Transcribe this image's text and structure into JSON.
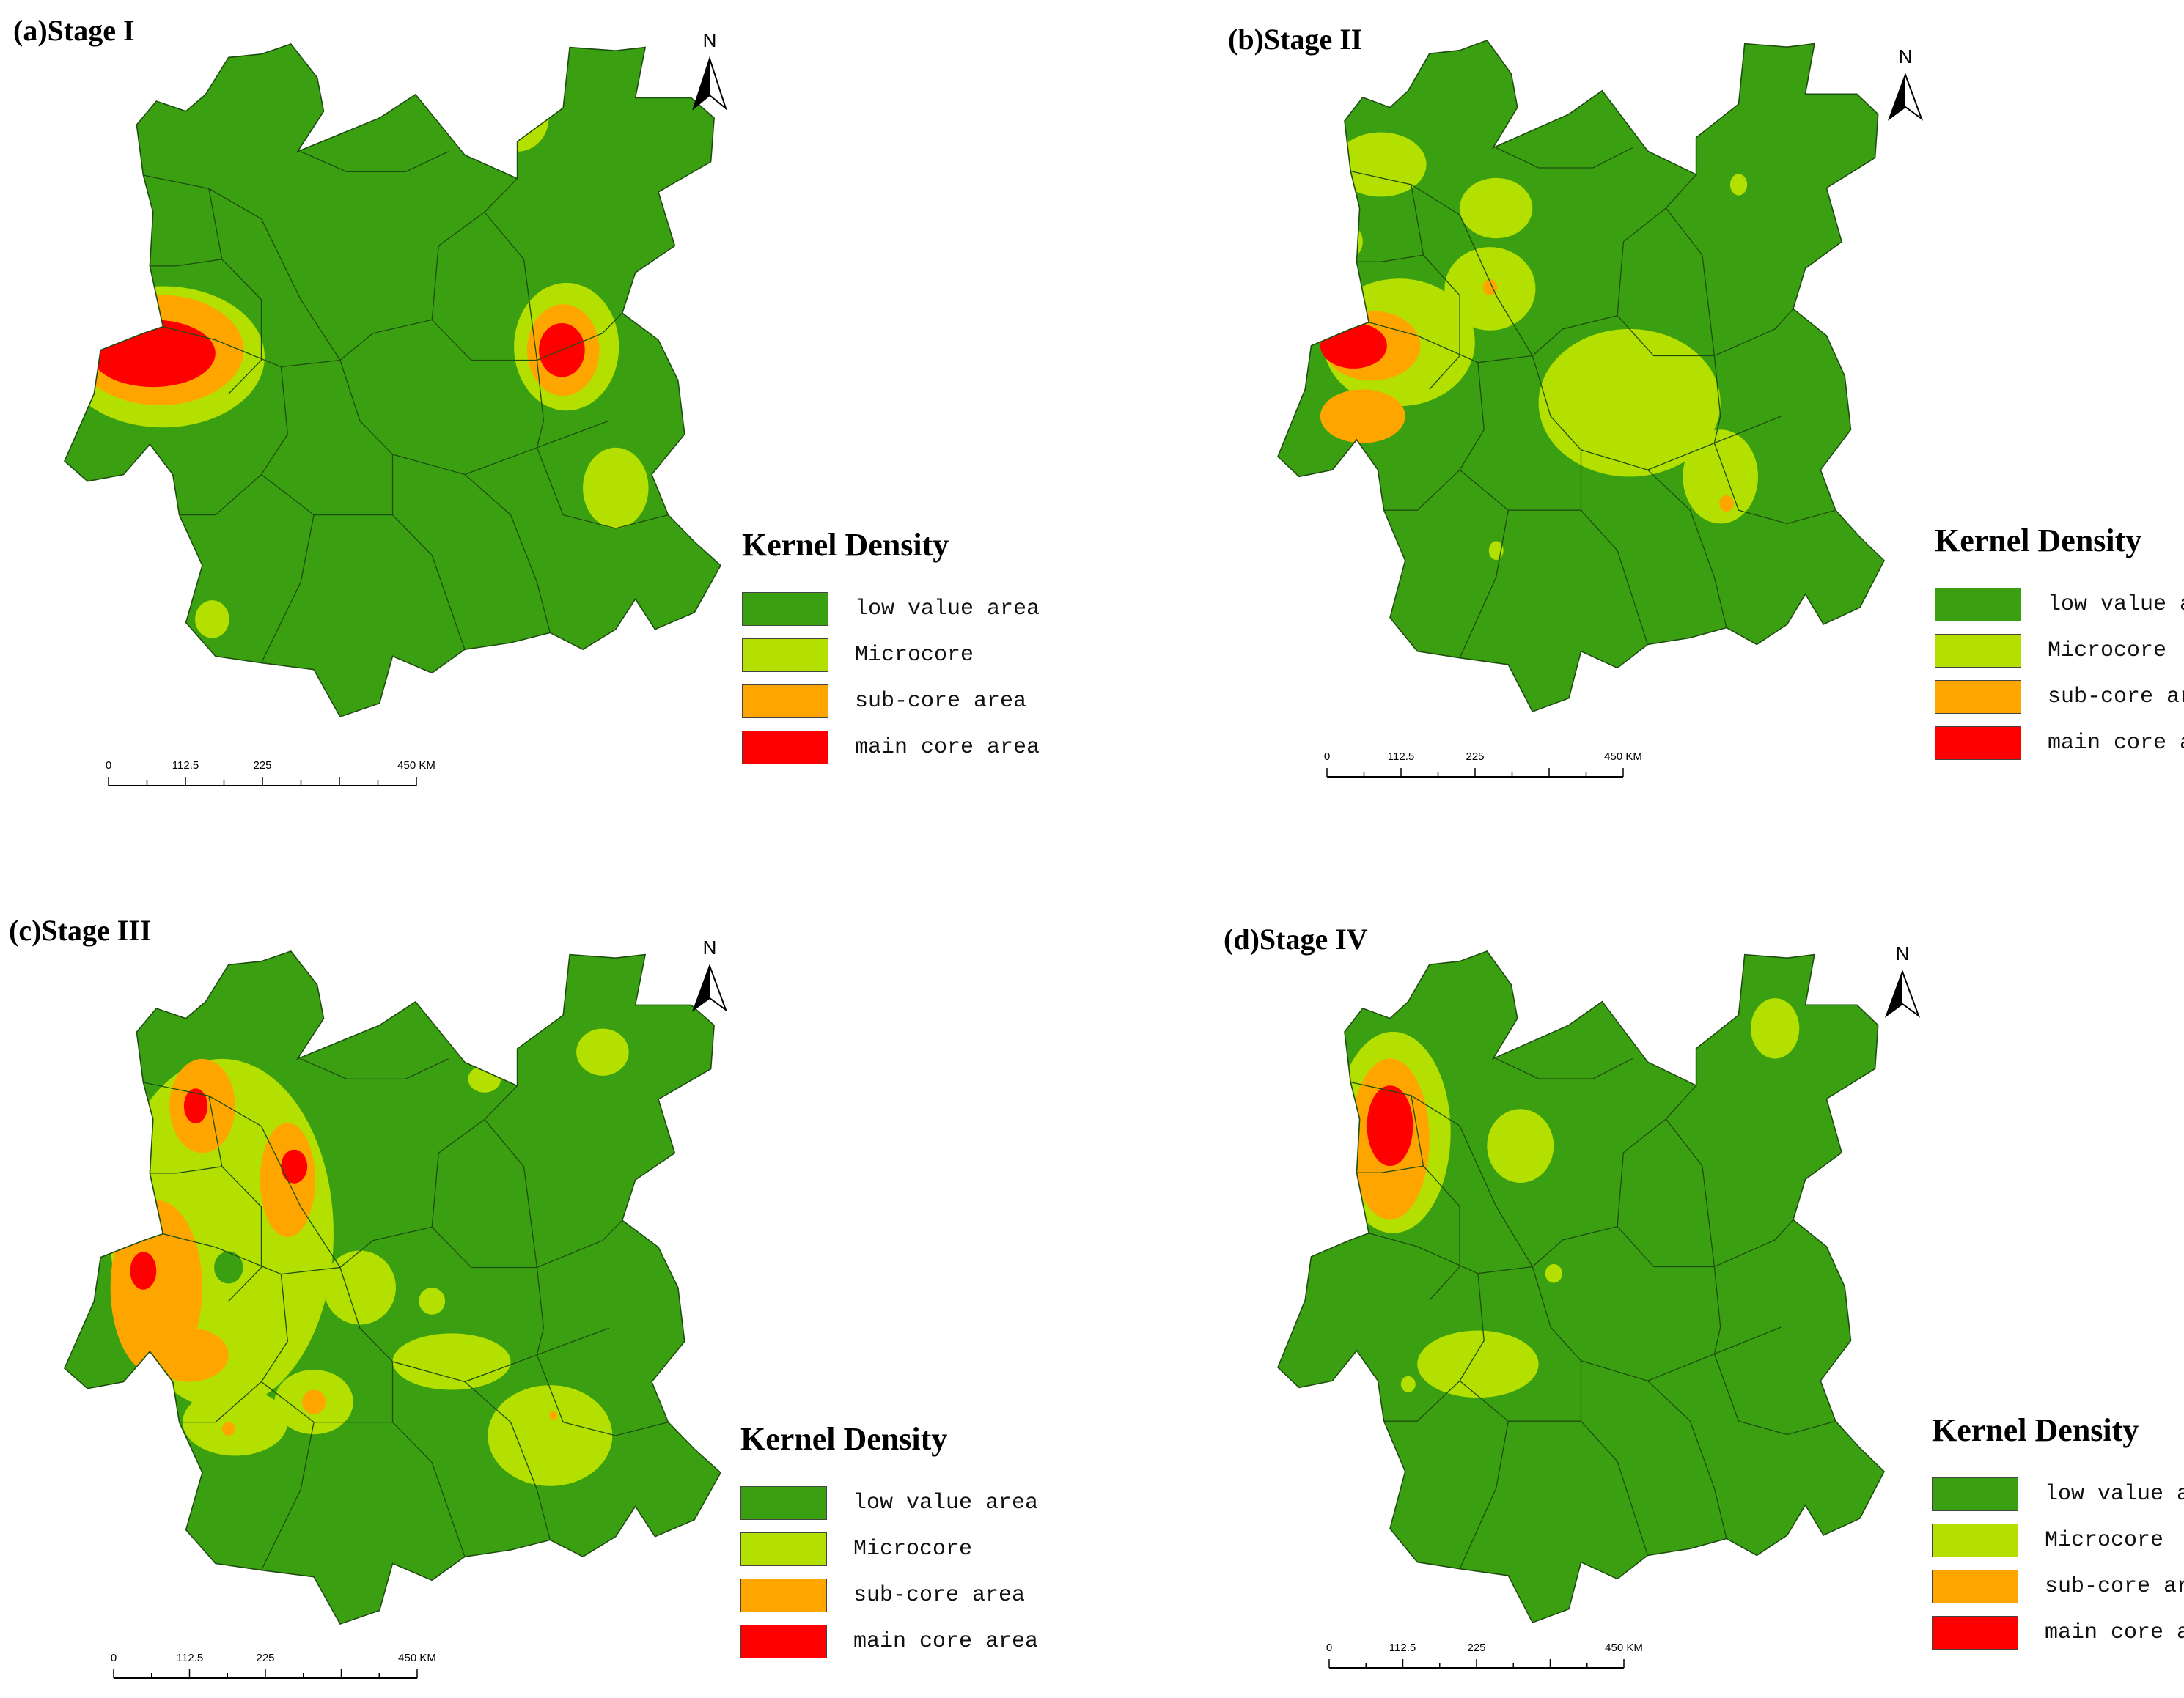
{
  "colors": {
    "low": "#3aa012",
    "micro": "#b3e000",
    "sub": "#ffa500",
    "main": "#ff0000",
    "border": "#1e4d10"
  },
  "panels": [
    {
      "id": "a",
      "title": "(a)Stage I",
      "legend_title": "Kernel Density",
      "legend": [
        "low value area",
        "Microcore",
        "sub-core area",
        "main core area"
      ],
      "scale": {
        "ticks": [
          "0",
          "112.5",
          "225",
          "450 KM"
        ]
      },
      "north": "N",
      "hotspots": [
        {
          "level": "micro",
          "shape": "ellipse",
          "where": "north-east spur"
        },
        {
          "level": "main",
          "shape": "ellipse",
          "where": "west"
        },
        {
          "level": "main",
          "shape": "ellipse",
          "where": "east"
        },
        {
          "level": "micro",
          "shape": "ellipse",
          "where": "south-east"
        },
        {
          "level": "micro",
          "shape": "ellipse",
          "where": "south"
        }
      ]
    },
    {
      "id": "b",
      "title": "(b)Stage II",
      "legend_title": "Kernel Density",
      "legend": [
        "low value area",
        "Microcore",
        "sub-core area",
        "main core area"
      ],
      "scale": {
        "ticks": [
          "0",
          "112.5",
          "225",
          "450 KM"
        ]
      },
      "north": "N",
      "hotspots": [
        {
          "level": "main",
          "shape": "ellipse",
          "where": "west"
        },
        {
          "level": "micro",
          "shape": "ellipse",
          "where": "north-west"
        },
        {
          "level": "micro",
          "shape": "ellipse",
          "where": "north-central"
        },
        {
          "level": "micro",
          "shape": "ellipse",
          "where": "east"
        },
        {
          "level": "sub",
          "shape": "ellipse",
          "where": "south-east"
        }
      ]
    },
    {
      "id": "c",
      "title": "(c)Stage III",
      "legend_title": "Kernel Density",
      "legend": [
        "low value area",
        "Microcore",
        "sub-core area",
        "main core area"
      ],
      "scale": {
        "ticks": [
          "0",
          "112.5",
          "225",
          "450 KM"
        ]
      },
      "north": "N",
      "hotspots": [
        {
          "level": "main",
          "shape": "ellipse",
          "where": "north-west"
        },
        {
          "level": "main",
          "shape": "ellipse",
          "where": "north-central"
        },
        {
          "level": "main",
          "shape": "ellipse",
          "where": "west"
        },
        {
          "level": "micro",
          "shape": "ellipse",
          "where": "central"
        },
        {
          "level": "micro",
          "shape": "ellipse",
          "where": "east"
        },
        {
          "level": "micro",
          "shape": "ellipse",
          "where": "south-east"
        }
      ]
    },
    {
      "id": "d",
      "title": "(d)Stage IV",
      "legend_title": "Kernel Density",
      "legend": [
        "low value area",
        "Microcore",
        "sub-core area",
        "main core area"
      ],
      "scale": {
        "ticks": [
          "0",
          "112.5",
          "225",
          "450 KM"
        ]
      },
      "north": "N",
      "hotspots": [
        {
          "level": "main",
          "shape": "ellipse",
          "where": "north-west"
        },
        {
          "level": "micro",
          "shape": "ellipse",
          "where": "north-central"
        },
        {
          "level": "micro",
          "shape": "ellipse",
          "where": "north-east spur"
        },
        {
          "level": "micro",
          "shape": "ellipse",
          "where": "south-west"
        }
      ]
    }
  ]
}
